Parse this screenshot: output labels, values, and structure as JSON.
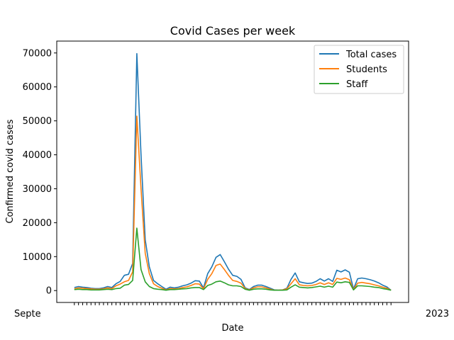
{
  "chart_data": {
    "type": "line",
    "title": "Covid Cases per week",
    "xlabel": "Date",
    "ylabel": "Confirmed covid cases",
    "ylim": [
      -3500,
      73500
    ],
    "yticks": [
      0,
      10000,
      20000,
      30000,
      40000,
      50000,
      60000,
      70000
    ],
    "grid": false,
    "legend": "top-right",
    "x_tick_label_display": "Septe",
    "x_tick_label_display_end": "2023",
    "series": [
      {
        "name": "Total cases",
        "color": "#1f77b4",
        "values": [
          900,
          1200,
          1000,
          900,
          700,
          600,
          600,
          800,
          1200,
          900,
          2000,
          2700,
          4500,
          4800,
          8000,
          69800,
          40000,
          15000,
          7000,
          3000,
          2000,
          1200,
          400,
          1000,
          800,
          1000,
          1400,
          1700,
          2200,
          2900,
          2800,
          800,
          5000,
          7000,
          9800,
          10600,
          8500,
          6300,
          4500,
          4200,
          3300,
          800,
          300,
          1200,
          1600,
          1600,
          1200,
          700,
          200,
          100,
          200,
          700,
          3300,
          5200,
          2600,
          2300,
          2100,
          2200,
          2700,
          3500,
          2800,
          3500,
          2700,
          6000,
          5500,
          6100,
          5400,
          500,
          3500,
          3700,
          3500,
          3200,
          2800,
          2300,
          1600,
          1100,
          100
        ]
      },
      {
        "name": "Students",
        "color": "#ff7f0e",
        "values": [
          500,
          800,
          700,
          600,
          500,
          400,
          400,
          500,
          800,
          600,
          1400,
          1900,
          2600,
          3000,
          5500,
          51400,
          30000,
          11000,
          5000,
          2000,
          1200,
          700,
          200,
          600,
          500,
          600,
          900,
          1100,
          1500,
          2000,
          1900,
          500,
          3300,
          5000,
          7400,
          7800,
          6200,
          4500,
          3000,
          2700,
          2200,
          600,
          200,
          800,
          1100,
          1100,
          800,
          400,
          100,
          100,
          200,
          500,
          2000,
          3500,
          1700,
          1500,
          1400,
          1500,
          1800,
          2300,
          1800,
          2300,
          1800,
          3600,
          3300,
          3700,
          3200,
          300,
          2200,
          2400,
          2200,
          2000,
          1700,
          1400,
          1000,
          700,
          100
        ]
      },
      {
        "name": "Staff",
        "color": "#2ca02c",
        "values": [
          300,
          400,
          300,
          300,
          200,
          200,
          200,
          300,
          400,
          300,
          600,
          700,
          1600,
          1800,
          3000,
          18400,
          6200,
          2600,
          1200,
          600,
          400,
          300,
          100,
          300,
          300,
          400,
          500,
          600,
          800,
          900,
          900,
          300,
          1500,
          1900,
          2600,
          2800,
          2300,
          1700,
          1400,
          1400,
          1200,
          400,
          100,
          400,
          500,
          500,
          400,
          200,
          100,
          100,
          100,
          200,
          1000,
          1700,
          1000,
          900,
          800,
          900,
          1100,
          1300,
          1000,
          1300,
          1000,
          2500,
          2300,
          2600,
          2400,
          200,
          1400,
          1400,
          1300,
          1200,
          1000,
          900,
          600,
          400,
          100
        ]
      }
    ]
  }
}
